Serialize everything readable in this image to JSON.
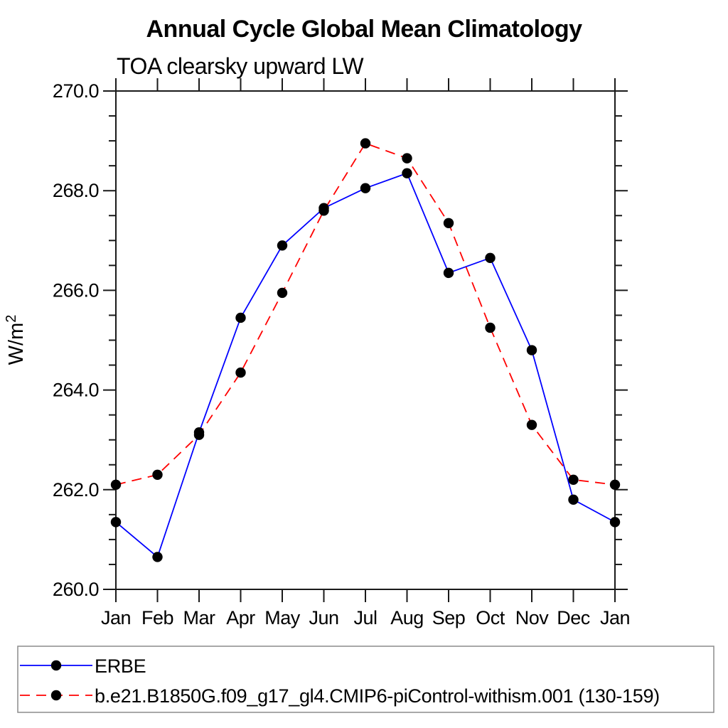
{
  "chart_data": {
    "type": "line",
    "title": "Annual Cycle Global Mean Climatology",
    "subtitle": "TOA clearsky upward LW",
    "ylabel": {
      "base": "W/m",
      "exponent": "2"
    },
    "xlabel": "",
    "categories": [
      "Jan",
      "Feb",
      "Mar",
      "Apr",
      "May",
      "Jun",
      "Jul",
      "Aug",
      "Sep",
      "Oct",
      "Nov",
      "Dec",
      "Jan"
    ],
    "ylim": [
      260.0,
      270.0
    ],
    "yticks": {
      "major_interval": 2.0,
      "minor_interval": 0.5,
      "labels": [
        "260.0",
        "262.0",
        "264.0",
        "266.0",
        "268.0",
        "270.0"
      ],
      "values": [
        260.0,
        262.0,
        264.0,
        266.0,
        268.0,
        270.0
      ]
    },
    "grid": false,
    "legend_position": "bottom",
    "marker": {
      "shape": "filled-circle",
      "color": "#000000"
    },
    "series": [
      {
        "name": "ERBE",
        "color": "#0000ff",
        "line_style": "solid",
        "values": [
          261.35,
          260.65,
          263.15,
          265.45,
          266.9,
          267.65,
          268.05,
          268.35,
          266.35,
          266.65,
          264.8,
          261.8,
          261.35
        ]
      },
      {
        "name": "b.e21.B1850G.f09_g17_gl4.CMIP6-piControl-withism.001 (130-159)",
        "color": "#ff0000",
        "line_style": "dashed",
        "values": [
          262.1,
          262.3,
          263.1,
          264.35,
          265.95,
          267.6,
          268.95,
          268.65,
          267.35,
          265.25,
          263.3,
          262.2,
          262.1
        ]
      }
    ]
  }
}
